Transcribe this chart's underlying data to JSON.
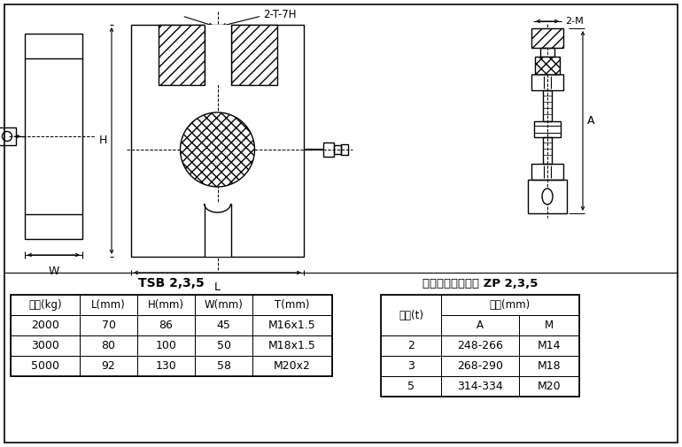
{
  "bg_color": "#ffffff",
  "title1": "TSB 2,3,5",
  "title2": "关节轴承式连接件 ZP 2,3,5",
  "table1_headers": [
    "容量(kg)",
    "L(mm)",
    "H(mm)",
    "W(mm)",
    "T(mm)"
  ],
  "table1_rows": [
    [
      "2000",
      "70",
      "86",
      "45",
      "M16x1.5"
    ],
    [
      "3000",
      "80",
      "100",
      "50",
      "M18x1.5"
    ],
    [
      "5000",
      "92",
      "130",
      "58",
      "M20x2"
    ]
  ],
  "table2_rows": [
    [
      "2",
      "248-266",
      "M14"
    ],
    [
      "3",
      "268-290",
      "M18"
    ],
    [
      "5",
      "314-334",
      "M20"
    ]
  ],
  "dim_H": "H",
  "dim_W": "W",
  "dim_L": "L",
  "dim_A": "A",
  "dim_2TH": "2-T-7H",
  "dim_2M": "2-M",
  "cap_t": "容量(t)",
  "size_mm": "尺寸(mm)"
}
